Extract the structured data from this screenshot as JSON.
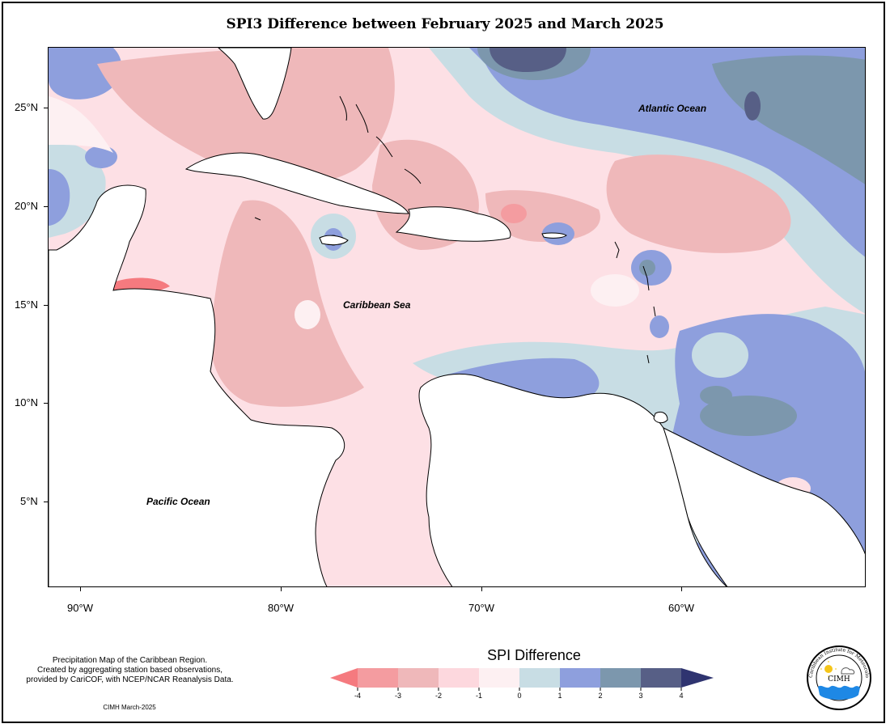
{
  "title": "SPI3 Difference between February 2025 and March 2025",
  "axes": {
    "y_ticks": [
      {
        "label": "25°N",
        "lat": 25
      },
      {
        "label": "20°N",
        "lat": 20
      },
      {
        "label": "15°N",
        "lat": 15
      },
      {
        "label": "10°N",
        "lat": 10
      },
      {
        "label": "5°N",
        "lat": 5
      }
    ],
    "x_ticks": [
      {
        "label": "90°W",
        "lon": -90
      },
      {
        "label": "80°W",
        "lon": -80
      },
      {
        "label": "70°W",
        "lon": -70
      },
      {
        "label": "60°W",
        "lon": -60
      }
    ]
  },
  "map_labels": {
    "atlantic": "Atlantic Ocean",
    "caribbean": "Caribbean Sea",
    "pacific": "Pacific Ocean"
  },
  "legend": {
    "title": "SPI Difference",
    "ticks": [
      "-4",
      "-3",
      "-2",
      "-1",
      "0",
      "1",
      "2",
      "3",
      "4"
    ],
    "colors": [
      "#f57a7f",
      "#f49ca0",
      "#efb8ba",
      "#fdd8de",
      "#fdf0f2",
      "#c8dde4",
      "#8e9fdd",
      "#7c97ad",
      "#575f86",
      "#2f3470"
    ]
  },
  "credit": {
    "line1": "Precipitation Map of the Caribbean Region.",
    "line2": "Created by aggregating station based observations,",
    "line3": "provided by CariCOF, with NCEP/NCAR Reanalysis Data.",
    "date": "CIMH March-2025"
  },
  "logo": {
    "text": "CIMH",
    "arc_text": "Caribbean Institute for Meteorology and Hydrology"
  }
}
